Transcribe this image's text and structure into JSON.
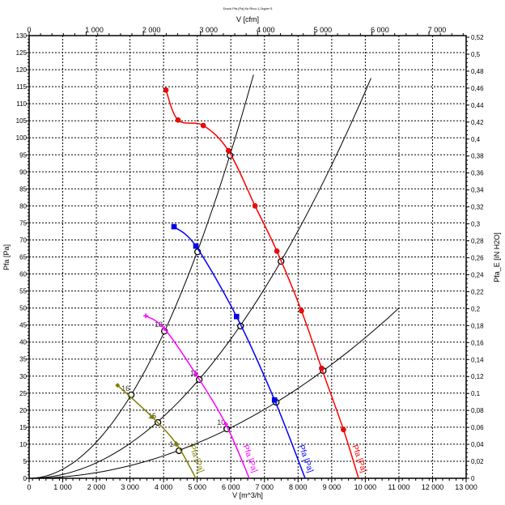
{
  "chart_data": {
    "type": "line",
    "title": "Druck Pfa [Pa] für Rho=1,2kg/m^3",
    "xlabel": "V [m^3/h]",
    "x2label": "V [cfm]",
    "ylabel": "Pfa [Pa]",
    "y2label": "Pfa_E [iN H2O]",
    "xlim": [
      0,
      13000
    ],
    "ylim": [
      0,
      130
    ],
    "x2lim_cfm": [
      0,
      7651
    ],
    "y2lim_inh2o": [
      0,
      0.522
    ],
    "grid": true,
    "x_ticks": [
      "0",
      "1 000",
      "2 000",
      "3 000",
      "4 000",
      "5 000",
      "6 000",
      "7 000",
      "8 000",
      "9 000",
      "10 000",
      "11 000",
      "12 000",
      "13 000"
    ],
    "x2_ticks": [
      "0",
      "1 000",
      "2 000",
      "3 000",
      "4 000",
      "5 000",
      "6 000",
      "7 000"
    ],
    "y_ticks": [
      "0",
      "5",
      "10",
      "15",
      "20",
      "25",
      "30",
      "35",
      "40",
      "45",
      "50",
      "55",
      "60",
      "65",
      "70",
      "75",
      "80",
      "85",
      "90",
      "95",
      "100",
      "105",
      "110",
      "115",
      "120",
      "125",
      "130"
    ],
    "y2_ticks": [
      "0",
      "0,02",
      "0,04",
      "0,06",
      "0,08",
      "0,1",
      "0,12",
      "0,14",
      "0,16",
      "0,18",
      "0,2",
      "0,22",
      "0,24",
      "0,26",
      "0,28",
      "0,3",
      "0,32",
      "0,34",
      "0,36",
      "0,38",
      "0,4",
      "0,42",
      "0,44",
      "0,46",
      "0,48",
      "0,5",
      "0,52"
    ],
    "series": [
      {
        "label": "Pfa [Pa]",
        "color": "#ff0000",
        "marker": "circle-cross",
        "x": [
          4070,
          4430,
          5180,
          5930,
          6720,
          7370,
          8100,
          8700,
          9350,
          9800
        ],
        "y": [
          114,
          105.2,
          103.6,
          96.2,
          80,
          66.7,
          49.2,
          32.3,
          14.3,
          0
        ]
      },
      {
        "label": "Pfa [Pa]",
        "color": "#0000ff",
        "marker": "square",
        "x": [
          4310,
          4960,
          6170,
          7300,
          8210
        ],
        "y": [
          73.9,
          68.2,
          47.5,
          23,
          0
        ]
      },
      {
        "label": "Pfa [Pa]",
        "color": "#ff00ff",
        "marker": "plus",
        "x": [
          3470,
          4020,
          4960,
          5850,
          6550
        ],
        "y": [
          47.7,
          44,
          30.6,
          15.9,
          0
        ]
      },
      {
        "label": "Pfa [Pa]",
        "color": "#808000",
        "marker": "diamond",
        "x": [
          2630,
          3660,
          4390,
          4960
        ],
        "y": [
          27.3,
          18,
          10,
          0
        ]
      }
    ],
    "system_curves": [
      {
        "k": 2.66,
        "x_max": 6675,
        "color": "#000000",
        "points": [
          {
            "x": 3036,
            "y": 24.5,
            "label": "16"
          },
          {
            "x": 4024,
            "y": 43.2,
            "label": "13"
          },
          {
            "x": 5012,
            "y": 66.5,
            "label": ""
          },
          {
            "x": 5976,
            "y": 94.8,
            "label": ""
          }
        ]
      },
      {
        "k": 1.136,
        "x_max": 10170,
        "color": "#000000",
        "points": [
          {
            "x": 3831,
            "y": 16.4,
            "label": "15"
          },
          {
            "x": 5060,
            "y": 29.0,
            "label": "11"
          },
          {
            "x": 6289,
            "y": 44.7,
            "label": ""
          },
          {
            "x": 7494,
            "y": 63.7,
            "label": ""
          }
        ]
      },
      {
        "k": 0.413,
        "x_max": 11010,
        "color": "#000000",
        "points": [
          {
            "x": 4458,
            "y": 8.1,
            "label": "14"
          },
          {
            "x": 5880,
            "y": 14.5,
            "label": "10"
          },
          {
            "x": 7349,
            "y": 22.3,
            "label": ""
          },
          {
            "x": 8747,
            "y": 31.6,
            "label": ""
          }
        ]
      }
    ]
  }
}
